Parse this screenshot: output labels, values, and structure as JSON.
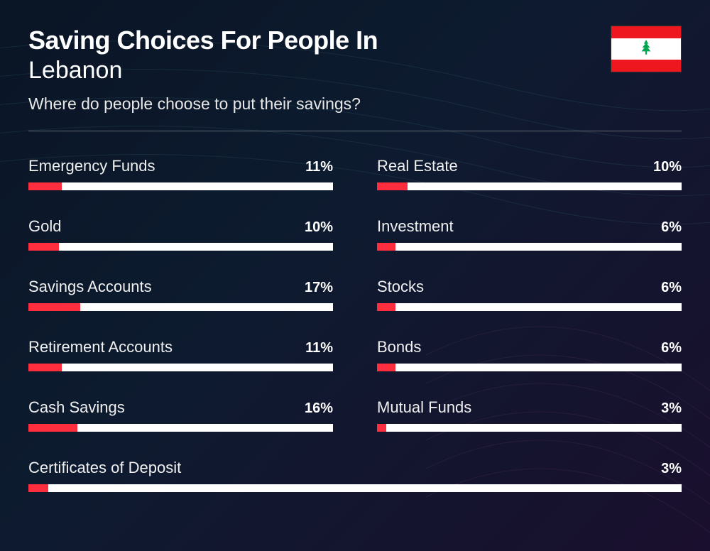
{
  "header": {
    "title_line1": "Saving Choices For People In",
    "title_line2": "Lebanon",
    "subtitle": "Where do people choose to put their savings?"
  },
  "flag": {
    "stripe_color": "#ee161f",
    "bg_color": "#ffffff",
    "tree_color": "#00a651"
  },
  "chart": {
    "bar_fill_color": "#ff2e3f",
    "bar_track_color": "#ffffff",
    "text_color": "#ffffff",
    "label_fontsize": 22,
    "value_fontsize": 20
  },
  "items": [
    {
      "label": "Emergency Funds",
      "value": 11,
      "display": "11%"
    },
    {
      "label": "Real Estate",
      "value": 10,
      "display": "10%"
    },
    {
      "label": "Gold",
      "value": 10,
      "display": "10%"
    },
    {
      "label": "Investment",
      "value": 6,
      "display": "6%"
    },
    {
      "label": "Savings Accounts",
      "value": 17,
      "display": "17%"
    },
    {
      "label": "Stocks",
      "value": 6,
      "display": "6%"
    },
    {
      "label": "Retirement Accounts",
      "value": 11,
      "display": "11%"
    },
    {
      "label": "Bonds",
      "value": 6,
      "display": "6%"
    },
    {
      "label": "Cash Savings",
      "value": 16,
      "display": "16%"
    },
    {
      "label": "Mutual Funds",
      "value": 3,
      "display": "3%"
    },
    {
      "label": "Certificates of Deposit",
      "value": 3,
      "display": "3%",
      "full": true
    }
  ]
}
